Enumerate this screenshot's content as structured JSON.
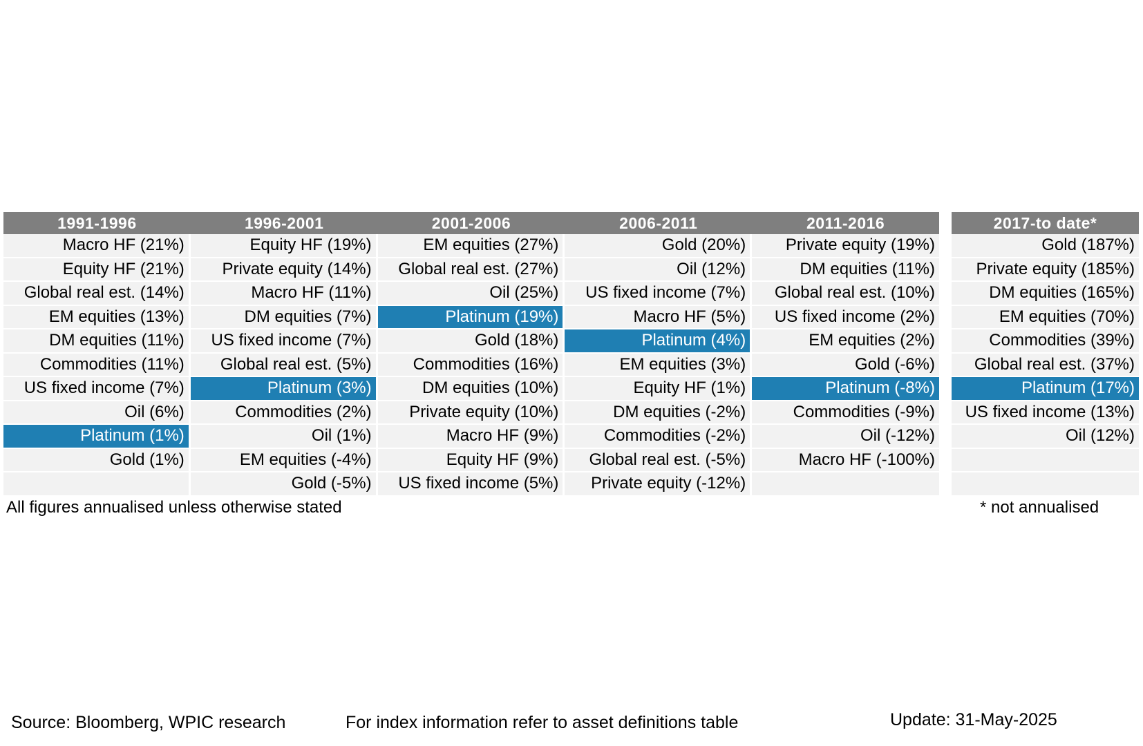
{
  "chart_data": {
    "type": "table",
    "highlight_color": "#1f7fb3",
    "header_color": "#7f7f7f",
    "highlight_label": "Platinum",
    "columns": [
      {
        "period": "1991-1996",
        "rows": [
          "Macro HF (21%)",
          "Equity HF (21%)",
          "Global real est. (14%)",
          "EM equities (13%)",
          "DM equities (11%)",
          "Commodities (11%)",
          "US fixed income (7%)",
          "Oil (6%)",
          "Platinum (1%)",
          "Gold (1%)",
          ""
        ]
      },
      {
        "period": "1996-2001",
        "rows": [
          "Equity HF (19%)",
          "Private equity (14%)",
          "Macro HF (11%)",
          "DM equities (7%)",
          "US fixed income (7%)",
          "Global real est. (5%)",
          "Platinum (3%)",
          "Commodities (2%)",
          "Oil (1%)",
          "EM equities (-4%)",
          "Gold (-5%)"
        ]
      },
      {
        "period": "2001-2006",
        "rows": [
          "EM equities (27%)",
          "Global real est. (27%)",
          "Oil (25%)",
          "Platinum (19%)",
          "Gold (18%)",
          "Commodities (16%)",
          "DM equities (10%)",
          "Private equity (10%)",
          "Macro HF (9%)",
          "Equity HF (9%)",
          "US fixed income (5%)"
        ]
      },
      {
        "period": "2006-2011",
        "rows": [
          "Gold (20%)",
          "Oil (12%)",
          "US fixed income (7%)",
          "Macro HF (5%)",
          "Platinum (4%)",
          "EM equities (3%)",
          "Equity HF (1%)",
          "DM equities (-2%)",
          "Commodities (-2%)",
          "Global real est. (-5%)",
          "Private equity (-12%)"
        ]
      },
      {
        "period": "2011-2016",
        "rows": [
          "Private equity (19%)",
          "DM equities (11%)",
          "Global real est. (10%)",
          "US fixed income (2%)",
          "EM equities (2%)",
          "Gold (-6%)",
          "Platinum (-8%)",
          "Commodities (-9%)",
          "Oil (-12%)",
          "Macro HF (-100%)",
          ""
        ]
      },
      {
        "period": "2017-to date*",
        "rows": [
          "Gold (187%)",
          "Private equity (185%)",
          "DM equities (165%)",
          "EM equities (70%)",
          "Commodities (39%)",
          "Global real est. (37%)",
          "Platinum (17%)",
          "US fixed income (13%)",
          "Oil (12%)",
          "",
          ""
        ]
      }
    ]
  },
  "notes": {
    "left": "All figures annualised unless otherwise stated",
    "right": "* not annualised"
  },
  "footer": {
    "source": "Source: Bloomberg, WPIC research",
    "index_info": "For index information refer to asset definitions table",
    "update": "Update: 31-May-2025"
  }
}
